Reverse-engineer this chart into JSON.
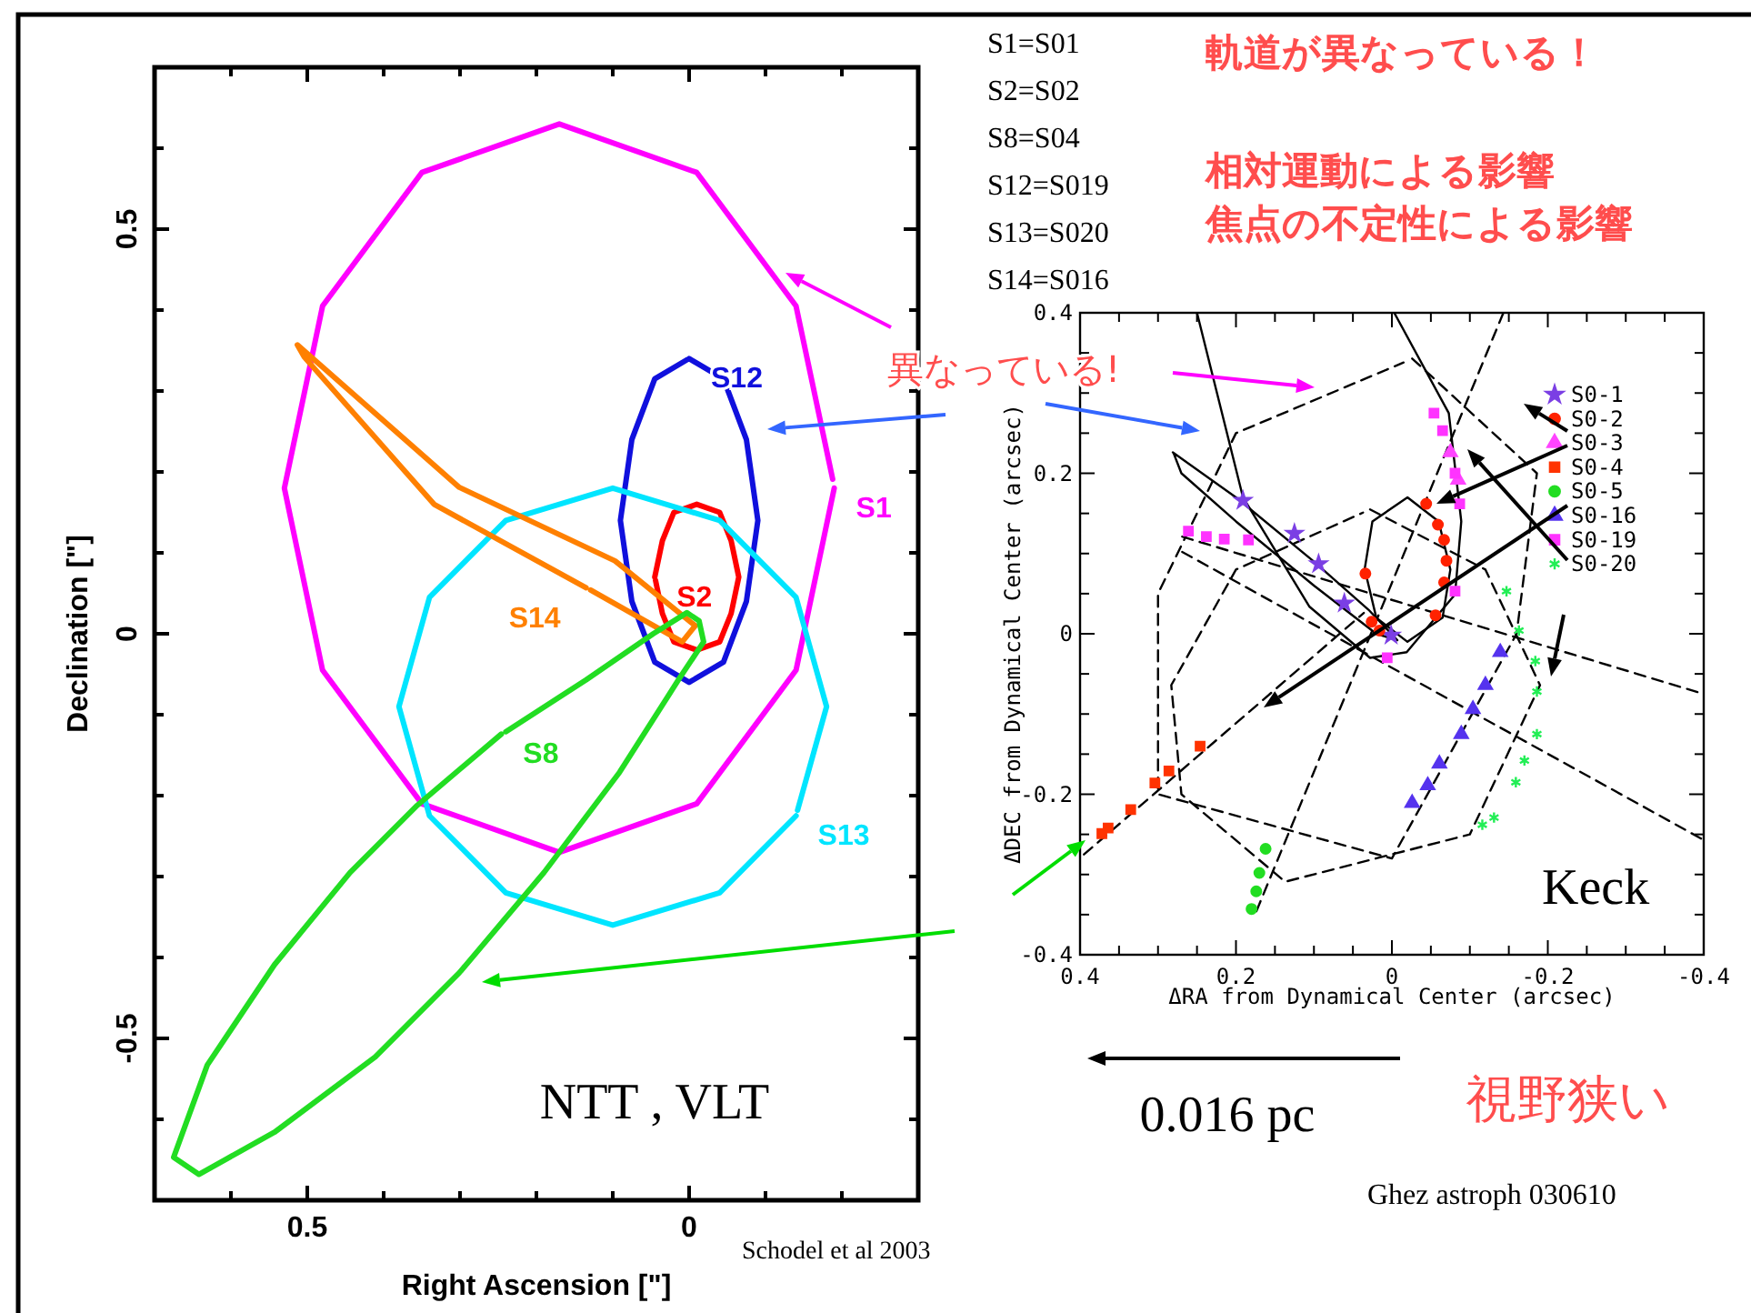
{
  "chart_data": [
    {
      "type": "line",
      "xlabel": "Right Ascension [\"]",
      "ylabel": "Declination [\"]",
      "xlim": [
        0.7,
        -0.3
      ],
      "ylim": [
        -0.7,
        0.7
      ],
      "xticks": [
        {
          "value": 0.6,
          "label": null
        },
        0.5,
        {
          "value": 0.4,
          "label": null
        },
        {
          "value": 0.3,
          "label": null
        },
        {
          "value": 0.2,
          "label": null
        },
        {
          "value": 0.1,
          "label": null
        },
        0,
        {
          "value": -0.1,
          "label": null
        },
        {
          "value": -0.2,
          "label": null
        }
      ],
      "yticks": [
        {
          "value": -0.6,
          "label": null
        },
        -0.5,
        {
          "value": -0.4,
          "label": null
        },
        {
          "value": -0.3,
          "label": null
        },
        {
          "value": -0.2,
          "label": null
        },
        {
          "value": -0.1,
          "label": null
        },
        0,
        {
          "value": 0.1,
          "label": null
        },
        {
          "value": 0.2,
          "label": null
        },
        {
          "value": 0.3,
          "label": null
        },
        {
          "value": 0.4,
          "label": null
        },
        0.5,
        {
          "value": 0.6,
          "label": null
        }
      ],
      "grid": false,
      "legend": false,
      "series": [
        {
          "name": "S1",
          "color": "#ff00ff",
          "marker": "none",
          "x": [
            -0.19,
            -0.14,
            -0.01,
            0.17,
            0.35,
            0.48,
            0.53,
            0.48,
            0.35,
            0.17,
            -0.01,
            -0.14,
            -0.188
          ],
          "values": [
            0.18,
            -0.045,
            -0.21,
            -0.27,
            -0.21,
            -0.045,
            0.18,
            0.405,
            0.57,
            0.63,
            0.57,
            0.405,
            0.191
          ]
        },
        {
          "name": "S2",
          "color": "#ff0000",
          "marker": "none",
          "x": [
            0.045,
            0.035,
            0.02,
            -0.01,
            -0.04,
            -0.055,
            -0.065,
            -0.055,
            -0.04,
            -0.01,
            0.02,
            0.035,
            0.044
          ],
          "values": [
            0.07,
            0.115,
            0.15,
            0.16,
            0.15,
            0.115,
            0.07,
            0.025,
            -0.01,
            -0.02,
            -0.01,
            0.025,
            0.066
          ]
        },
        {
          "name": "S12",
          "color": "#1010dd",
          "marker": "none",
          "x": [
            0,
            -0.045,
            -0.075,
            -0.09,
            -0.075,
            -0.045,
            0,
            0.045,
            0.075,
            0.09,
            0.075,
            0.045,
            0.002
          ],
          "values": [
            0.34,
            0.315,
            0.24,
            0.14,
            0.04,
            -0.035,
            -0.06,
            -0.035,
            0.04,
            0.14,
            0.24,
            0.315,
            0.339
          ]
        },
        {
          "name": "S13",
          "color": "#00e5ff",
          "marker": "none",
          "x": [
            -0.14,
            -0.04,
            0.1,
            0.24,
            0.34,
            0.38,
            0.34,
            0.24,
            0.1,
            -0.04,
            -0.14,
            -0.18,
            -0.142
          ],
          "values": [
            -0.225,
            -0.32,
            -0.36,
            -0.32,
            -0.225,
            -0.09,
            0.045,
            0.14,
            0.18,
            0.14,
            0.045,
            -0.09,
            -0.218
          ]
        },
        {
          "name": "S14",
          "color": "#ff8000",
          "marker": "none",
          "x": [
            0.135,
            0.334,
            0.504,
            0.513,
            0.301,
            0.097,
            -0.008,
            0.009,
            0.129
          ],
          "values": [
            0.057,
            0.16,
            0.342,
            0.357,
            0.181,
            0.09,
            0.01,
            -0.01,
            0.054
          ]
        },
        {
          "name": "S8",
          "color": "#22dd22",
          "marker": "none",
          "x": [
            0.246,
            0.356,
            0.444,
            0.543,
            0.631,
            0.675,
            0.642,
            0.543,
            0.411,
            0.301,
            0.19,
            0.091,
            0.014,
            -0.019,
            -0.013,
            0.003,
            0.047,
            0.135,
            0.24
          ],
          "values": [
            -0.124,
            -0.212,
            -0.295,
            -0.409,
            -0.533,
            -0.647,
            -0.668,
            -0.616,
            -0.523,
            -0.419,
            -0.295,
            -0.171,
            -0.057,
            -0.01,
            0.016,
            0.026,
            0,
            -0.057,
            -0.121
          ]
        }
      ],
      "annotations": [
        "NTT , VLT",
        "Schodel et al 2003"
      ]
    },
    {
      "type": "scatter",
      "xlabel": "ΔRA from Dynamical Center (arcsec)",
      "ylabel": "ΔDEC from Dynamical Center (arcsec)",
      "xlim": [
        0.4,
        -0.4
      ],
      "ylim": [
        -0.4,
        0.4
      ],
      "xticks": [
        0.4,
        {
          "value": 0.35,
          "label": null
        },
        {
          "value": 0.3,
          "label": null
        },
        {
          "value": 0.25,
          "label": null
        },
        0.2,
        {
          "value": 0.15,
          "label": null
        },
        {
          "value": 0.1,
          "label": null
        },
        {
          "value": 0.05,
          "label": null
        },
        0,
        {
          "value": -0.05,
          "label": null
        },
        {
          "value": -0.1,
          "label": null
        },
        {
          "value": -0.15,
          "label": null
        },
        -0.2,
        {
          "value": -0.25,
          "label": null
        },
        {
          "value": -0.3,
          "label": null
        },
        {
          "value": -0.35,
          "label": null
        },
        -0.4
      ],
      "yticks": [
        -0.4,
        {
          "value": -0.35,
          "label": null
        },
        {
          "value": -0.3,
          "label": null
        },
        {
          "value": -0.25,
          "label": null
        },
        -0.2,
        {
          "value": -0.15,
          "label": null
        },
        {
          "value": -0.1,
          "label": null
        },
        {
          "value": -0.05,
          "label": null
        },
        0,
        {
          "value": 0.05,
          "label": null
        },
        {
          "value": 0.1,
          "label": null
        },
        {
          "value": 0.15,
          "label": null
        },
        0.2,
        {
          "value": 0.25,
          "label": null
        },
        {
          "value": 0.3,
          "label": null
        },
        {
          "value": 0.35,
          "label": null
        },
        0.4
      ],
      "grid": false,
      "legend": "top right",
      "series": [
        {
          "type": "line",
          "color": "#000000",
          "marker": "none",
          "line_style": "solid",
          "x": [
            0.25,
            0.191,
            0.106,
            0.028,
            -0.019,
            -0.081,
            -0.089,
            -0.073,
            -0.003
          ],
          "values": [
            0.4,
            0.17,
            0.034,
            -0.03,
            -0.023,
            0.049,
            0.14,
            0.275,
            0.4
          ]
        },
        {
          "type": "line",
          "color": "#000000",
          "marker": "none",
          "line_style": "solid",
          "x": [
            0.035,
            0.025,
            -0.02,
            -0.06,
            -0.075,
            -0.065,
            -0.02,
            0.02,
            0.034
          ],
          "values": [
            0.08,
            0.14,
            0.17,
            0.14,
            0.08,
            0.02,
            -0.01,
            0.02,
            0.077
          ]
        },
        {
          "type": "line",
          "color": "#000000",
          "marker": "none",
          "line_style": "solid",
          "x": [
            0.281,
            0.2,
            0.1,
            0.03,
            -0.007,
            0.02,
            0.1,
            0.2,
            0.27,
            0.28
          ],
          "values": [
            0.226,
            0.17,
            0.09,
            0.03,
            -0.008,
            0.0,
            0.06,
            0.14,
            0.2,
            0.225
          ]
        },
        {
          "type": "line",
          "color": "#000000",
          "marker": "none",
          "line_style": "dashed",
          "x": [
            -0.026,
            -0.186,
            -0.16,
            0.0,
            0.3,
            0.3,
            0.2,
            -0.015
          ],
          "values": [
            0.343,
            0.2,
            0.0,
            -0.28,
            -0.2,
            0.05,
            0.25,
            0.338
          ]
        },
        {
          "type": "line",
          "color": "#000000",
          "marker": "none",
          "line_style": "dashed",
          "x": [
            0.028,
            -0.12,
            -0.19,
            -0.1,
            0.137,
            0.27,
            0.283,
            0.2,
            0.037
          ],
          "values": [
            0.155,
            0.08,
            -0.064,
            -0.25,
            -0.309,
            -0.2,
            -0.064,
            0.08,
            0.151
          ]
        },
        {
          "type": "line",
          "color": "#000000",
          "marker": "none",
          "line_style": "dashed",
          "x": [
            0.395,
            0.036
          ],
          "values": [
            -0.275,
            0.026
          ]
        },
        {
          "type": "line",
          "color": "#000000",
          "marker": "none",
          "line_style": "dashed",
          "x": [
            0.269,
            -0.4
          ],
          "values": [
            0.121,
            -0.075
          ]
        },
        {
          "type": "line",
          "color": "#000000",
          "marker": "none",
          "line_style": "dashed",
          "x": [
            0.269,
            -0.4
          ],
          "values": [
            0.102,
            -0.257
          ]
        },
        {
          "type": "line",
          "color": "#000000",
          "marker": "none",
          "line_style": "dashed",
          "x": [
            -0.143,
            0.176
          ],
          "values": [
            0.4,
            -0.351
          ]
        },
        {
          "name": "S0-1",
          "color": "#7b3fe4",
          "marker": "star",
          "x": [
            0.191,
            0.125,
            0.094,
            0.061,
            0.001
          ],
          "values": [
            0.166,
            0.125,
            0.087,
            0.038,
            -0.002
          ]
        },
        {
          "name": "S0-2",
          "color": "#ff2200",
          "marker": "circle",
          "x": [
            -0.044,
            -0.059,
            -0.067,
            -0.07,
            -0.067,
            -0.056,
            0.034,
            0.026,
            0.016
          ],
          "values": [
            0.162,
            0.136,
            0.117,
            0.091,
            0.064,
            0.023,
            0.075,
            0.015,
            0.004
          ]
        },
        {
          "name": "S0-3",
          "color": "#ff44ff",
          "marker": "triangle",
          "x": [
            -0.075,
            -0.085
          ],
          "values": [
            0.226,
            0.192
          ]
        },
        {
          "name": "S0-4",
          "color": "#ff3300",
          "marker": "square",
          "x": [
            0.246,
            0.286,
            0.304,
            0.335,
            0.364,
            0.372
          ],
          "values": [
            -0.14,
            -0.171,
            -0.186,
            -0.219,
            -0.242,
            -0.249
          ]
        },
        {
          "name": "S0-5",
          "color": "#22dd22",
          "marker": "circle",
          "x": [
            0.162,
            0.17,
            0.174,
            0.18
          ],
          "values": [
            -0.268,
            -0.298,
            -0.321,
            -0.343
          ]
        },
        {
          "name": "S0-16",
          "color": "#5533ee",
          "marker": "triangle",
          "x": [
            -0.139,
            -0.12,
            -0.104,
            -0.089,
            -0.061,
            -0.046,
            -0.026
          ],
          "values": [
            -0.023,
            -0.064,
            -0.094,
            -0.125,
            -0.162,
            -0.189,
            -0.211
          ]
        },
        {
          "name": "S0-19",
          "color": "#ff33ff",
          "marker": "square",
          "x": [
            0.261,
            0.238,
            0.215,
            0.184,
            -0.054,
            -0.065,
            -0.081,
            -0.087,
            -0.081,
            0.006
          ],
          "values": [
            0.128,
            0.121,
            0.118,
            0.117,
            0.275,
            0.253,
            0.2,
            0.162,
            0.053,
            -0.03
          ]
        },
        {
          "name": "S0-20",
          "color": "#22ee55",
          "marker": "cross",
          "x": [
            -0.147,
            -0.163,
            -0.184,
            -0.186,
            -0.186,
            -0.17,
            -0.159,
            -0.131,
            -0.116
          ],
          "values": [
            0.053,
            0.004,
            -0.034,
            -0.072,
            -0.125,
            -0.158,
            -0.185,
            -0.229,
            -0.238
          ]
        }
      ],
      "annotations": [
        "Keck",
        "Ghez astroph 030610",
        "0.016 pc",
        "視野狭い",
        "S1=S01",
        "S2=S02",
        "S8=S04",
        "S12=S019",
        "S13=S020",
        "S14=S016",
        "軌道が異なっている！",
        "相対運動による影響",
        "焦点の不定性による影響",
        "異なっている!"
      ]
    }
  ]
}
